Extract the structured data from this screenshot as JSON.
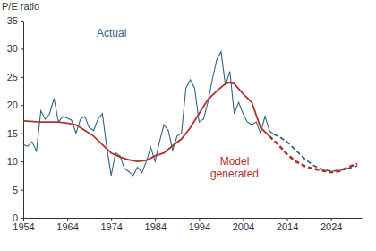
{
  "chart_data": {
    "type": "line",
    "y_label": "P/E ratio",
    "xlim": [
      1954,
      2031
    ],
    "xticks": [
      1954,
      1964,
      1974,
      1984,
      1994,
      2004,
      2014,
      2024
    ],
    "ylim": [
      0,
      35
    ],
    "yticks": [
      0,
      5,
      10,
      15,
      20,
      25,
      30,
      35
    ],
    "grid": false,
    "series": [
      {
        "name": "Actual",
        "color": "#2f6485",
        "line_style": "solid",
        "x": [
          1954,
          1955,
          1956,
          1957,
          1958,
          1959,
          1960,
          1961,
          1962,
          1963,
          1964,
          1965,
          1966,
          1967,
          1968,
          1969,
          1970,
          1971,
          1972,
          1973,
          1974,
          1975,
          1976,
          1977,
          1978,
          1979,
          1980,
          1981,
          1982,
          1983,
          1984,
          1985,
          1986,
          1987,
          1988,
          1989,
          1990,
          1991,
          1992,
          1993,
          1994,
          1995,
          1996,
          1997,
          1998,
          1999,
          2000,
          2001,
          2002,
          2003,
          2004,
          2005,
          2006,
          2007,
          2008,
          2009,
          2010,
          2011
        ],
        "values": [
          13,
          12.7,
          13.5,
          11.8,
          19,
          17.5,
          18.5,
          21.2,
          17,
          18,
          17.7,
          17.3,
          15,
          17.5,
          18,
          16,
          15.5,
          17.5,
          18.5,
          12.5,
          7.5,
          11.5,
          11,
          8.8,
          8.2,
          7.5,
          9,
          8,
          10,
          12.5,
          10,
          13.5,
          16.5,
          15.5,
          12,
          14.5,
          15,
          23,
          24.5,
          23,
          17,
          17.5,
          20.5,
          24.5,
          28,
          29.5,
          23.5,
          26,
          18.5,
          20.5,
          18.5,
          17,
          16.5,
          17,
          15,
          18,
          15.5,
          14.8
        ]
      },
      {
        "color": "#2f6485",
        "line_style": "dashed",
        "x": [
          2011,
          2012,
          2014,
          2016,
          2018,
          2020,
          2022,
          2024,
          2026,
          2028,
          2030
        ],
        "values": [
          14.8,
          14.5,
          13.5,
          12,
          10.5,
          9.3,
          8.6,
          8.3,
          8.4,
          8.8,
          9.2
        ]
      },
      {
        "name": "Model generated",
        "color": "#b3312b",
        "line_style": "solid",
        "x": [
          1954,
          1958,
          1962,
          1964,
          1966,
          1968,
          1970,
          1972,
          1974,
          1976,
          1978,
          1980,
          1982,
          1984,
          1986,
          1988,
          1990,
          1992,
          1994,
          1996,
          1998,
          2000,
          2001,
          2002,
          2004,
          2006,
          2008,
          2010
        ],
        "values": [
          17.2,
          17,
          17,
          16.8,
          16.5,
          15.5,
          14.5,
          13,
          11.5,
          10.8,
          10.3,
          10,
          10.2,
          11,
          11.5,
          12.8,
          14,
          16,
          18.5,
          21,
          22.5,
          23.8,
          24,
          23.8,
          22,
          20.5,
          16,
          14.5
        ]
      },
      {
        "color": "#b3312b",
        "line_style": "dashed",
        "x": [
          2010,
          2012,
          2014,
          2016,
          2018,
          2020,
          2022,
          2024,
          2026,
          2028,
          2030
        ],
        "values": [
          14.5,
          13,
          11.3,
          10,
          9.2,
          8.7,
          8.4,
          8.1,
          8.3,
          9,
          9.6
        ]
      }
    ]
  }
}
